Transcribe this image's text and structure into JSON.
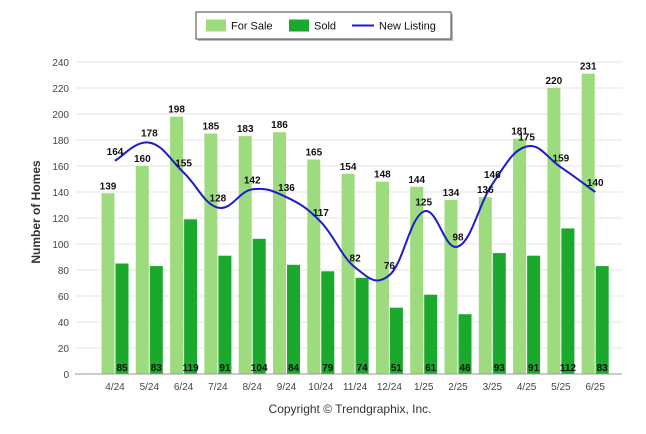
{
  "chart_data": {
    "type": "bar",
    "categories": [
      "4/24",
      "5/24",
      "6/24",
      "7/24",
      "8/24",
      "9/24",
      "10/24",
      "11/24",
      "12/24",
      "1/25",
      "2/25",
      "3/25",
      "4/25",
      "5/25",
      "6/25"
    ],
    "series": [
      {
        "name": "For Sale",
        "type": "bar",
        "color": "#9ddb7e",
        "values": [
          139,
          160,
          198,
          185,
          183,
          186,
          165,
          154,
          148,
          144,
          134,
          136,
          181,
          220,
          231
        ]
      },
      {
        "name": "Sold",
        "type": "bar",
        "color": "#1aa82d",
        "values": [
          85,
          83,
          119,
          91,
          104,
          84,
          79,
          74,
          51,
          61,
          46,
          93,
          91,
          112,
          83
        ]
      },
      {
        "name": "New Listing",
        "type": "line",
        "color": "#1c1ccc",
        "values": [
          164,
          178,
          155,
          128,
          142,
          136,
          117,
          82,
          76,
          125,
          98,
          146,
          175,
          159,
          140
        ]
      }
    ],
    "ylabel": "Number of Homes",
    "xlabel": "",
    "ylim": [
      0,
      240
    ],
    "yticks": [
      0,
      20,
      40,
      60,
      80,
      100,
      120,
      140,
      160,
      180,
      200,
      220,
      240
    ],
    "grid": true,
    "legend_position": "top-center",
    "footer": "Copyright © Trendgraphix, Inc."
  }
}
